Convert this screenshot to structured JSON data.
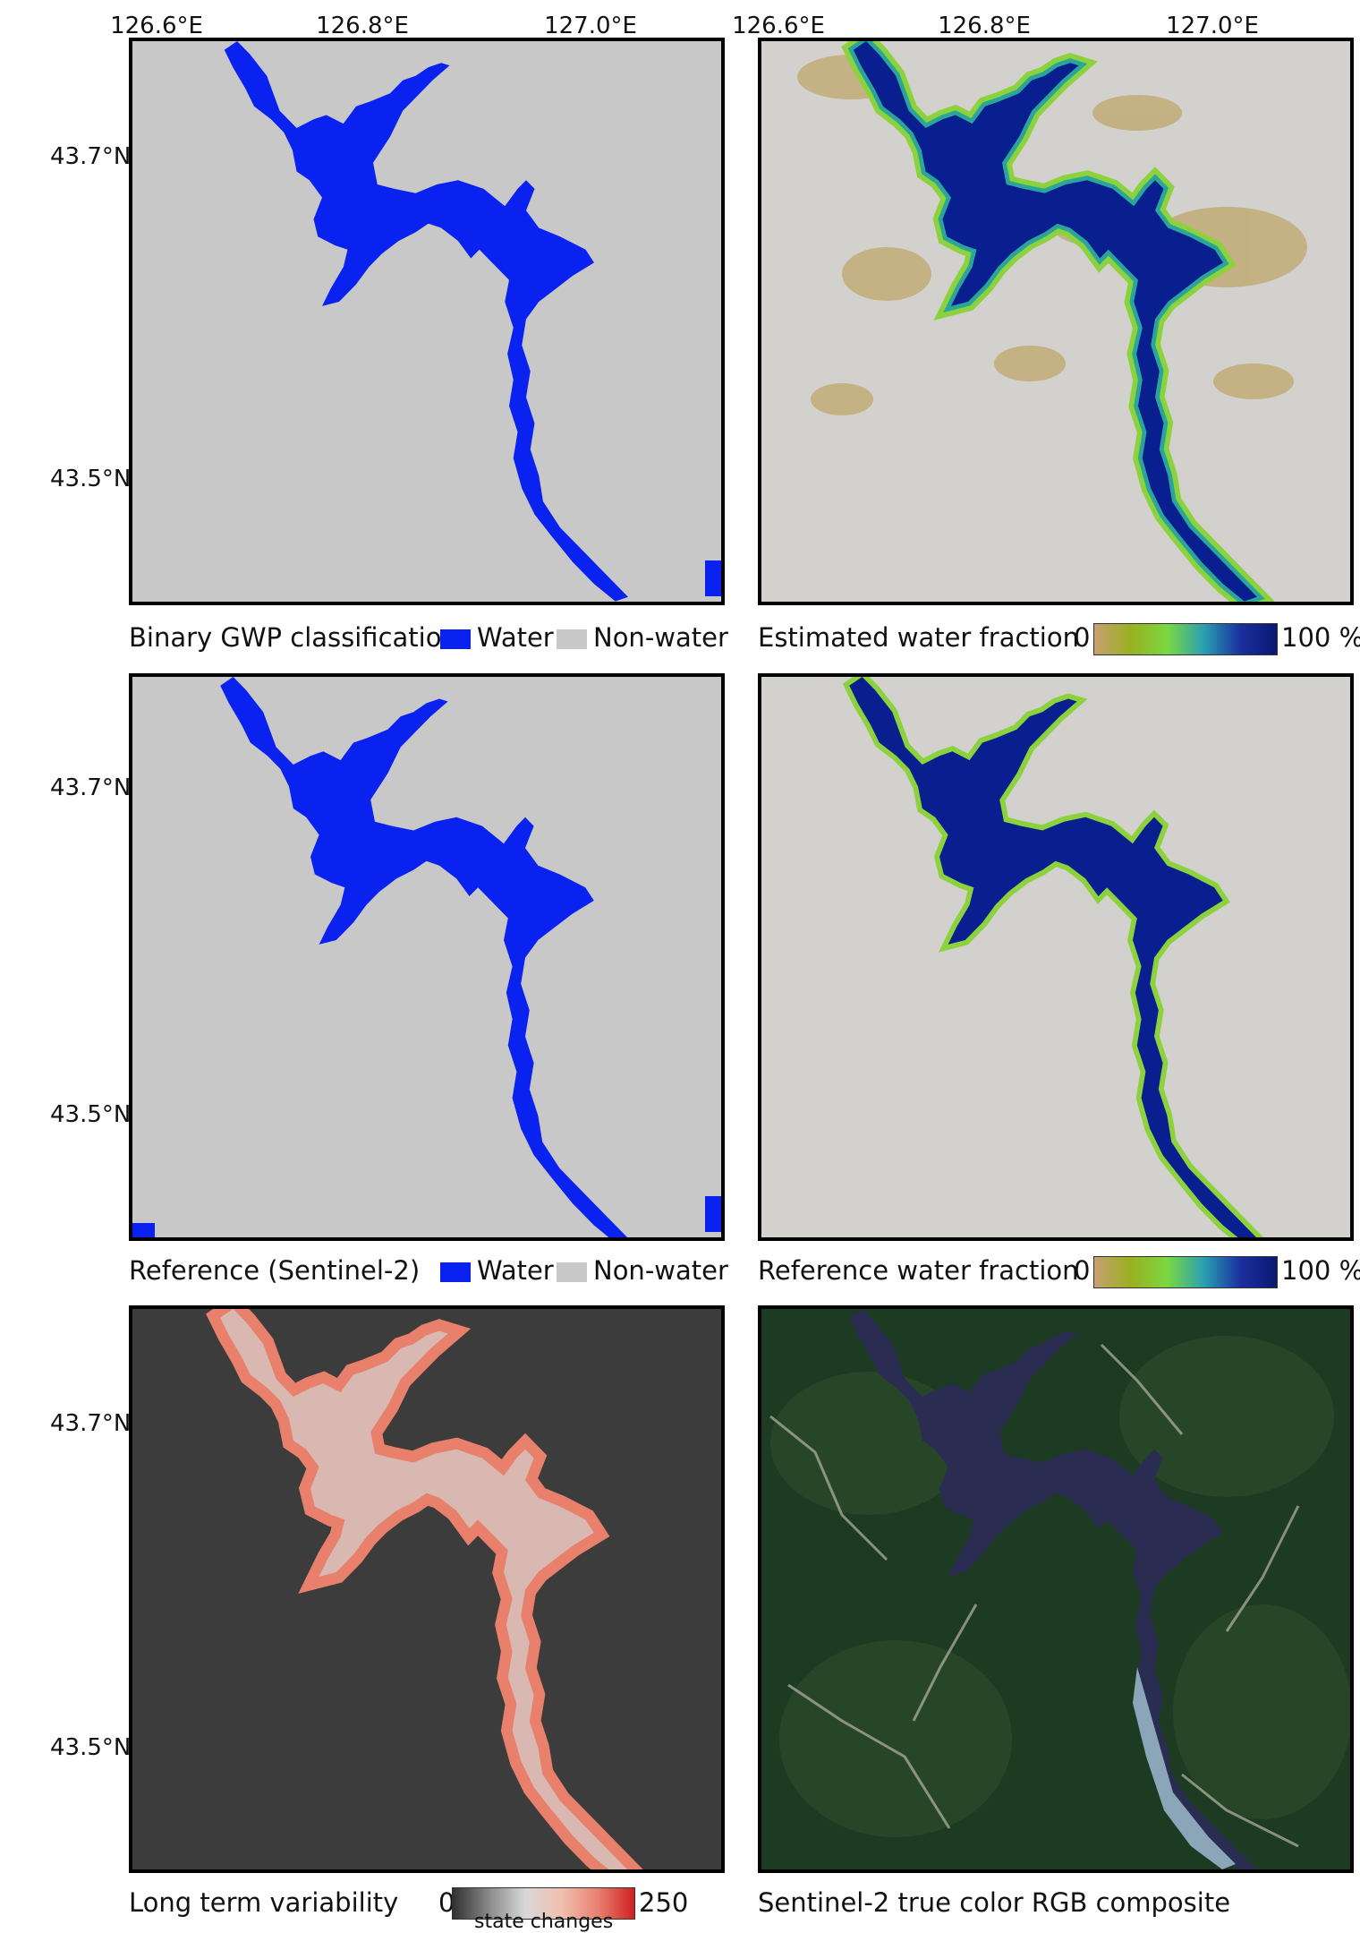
{
  "top_axis": {
    "left_ticks": [
      "126.6°E",
      "126.8°E",
      "127.0°E"
    ],
    "right_ticks": [
      "126.6°E",
      "126.8°E",
      "127.0°E"
    ]
  },
  "left_axis": {
    "lat_ticks": [
      "43.7°N",
      "43.5°N"
    ]
  },
  "panels": {
    "p1": {
      "caption": "Binary GWP classification",
      "legend_water": "Water",
      "legend_nonwater": "Non-water"
    },
    "p2": {
      "caption": "Estimated water fraction",
      "bar_min": "0",
      "bar_max": "100 %"
    },
    "p3": {
      "caption": "Reference (Sentinel-2)",
      "legend_water": "Water",
      "legend_nonwater": "Non-water"
    },
    "p4": {
      "caption": "Reference water fraction",
      "bar_min": "0",
      "bar_max": "100 %"
    },
    "p5": {
      "caption": "Long term variability",
      "bar_min": "0",
      "bar_max": "250",
      "bar_unit": "state changes"
    },
    "p6": {
      "caption": "Sentinel-2 true color RGB composite"
    }
  },
  "colors": {
    "water": "#0a22f0",
    "nonwater": "#c8c8c8",
    "fraction_background": "#d3d1cd",
    "fraction_deep": "#0a1f8f",
    "variability_background": "#3c3c3c",
    "variability_high": "#e89080",
    "satellite_forest": "#1d3a22"
  },
  "icons": [
    "lake-shape",
    "colorbar-gradient"
  ]
}
